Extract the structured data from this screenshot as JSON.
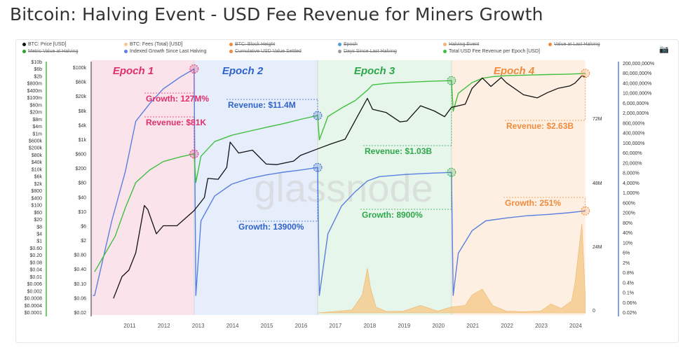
{
  "page": {
    "title": "Bitcoin: Halving Event - USD Fee Revenue for Miners Growth",
    "watermark": "glassnode",
    "camera_icon": "camera-icon"
  },
  "legend": [
    {
      "label": "BTC: Price [USD]",
      "color": "#111111",
      "enabled": true
    },
    {
      "label": "BTC: Fees (Total) [USD]",
      "color": "#f5c98a",
      "enabled": true
    },
    {
      "label": "BTC: Block Height",
      "color": "#f08a3c",
      "enabled": false
    },
    {
      "label": "Epoch",
      "color": "#4a9fd8",
      "enabled": false
    },
    {
      "label": "Halving Event",
      "color": "#f4b27a",
      "enabled": false
    },
    {
      "label": "Value at Last Halving",
      "color": "#f08a3c",
      "enabled": false
    },
    {
      "label": "Metric Value at Halving",
      "color": "#2ca02c",
      "enabled": false
    },
    {
      "label": "Indexed Growth Since Last Halving",
      "color": "#5b7fe0",
      "enabled": true
    },
    {
      "label": "Cumulative USD Value Settled",
      "color": "#f08a3c",
      "enabled": false
    },
    {
      "label": "Days Since Last Halving",
      "color": "#999999",
      "enabled": false
    },
    {
      "label": "Total USD Fee Revenue per Epoch [USD]",
      "color": "#3fbf3f",
      "enabled": true
    }
  ],
  "chart_data": {
    "type": "line",
    "title": "Bitcoin: Halving Event - USD Fee Revenue for Miners Growth",
    "x_ticks": [
      "2011",
      "2012",
      "2013",
      "2014",
      "2015",
      "2016",
      "2017",
      "2018",
      "2019",
      "2020",
      "2021",
      "2022",
      "2023",
      "2024"
    ],
    "axes": {
      "price_left": [
        "$100k",
        "$60k",
        "$20k",
        "$8k",
        "$4k",
        "$1k",
        "$600",
        "$200",
        "$80",
        "$40",
        "$10",
        "$6",
        "$2",
        "$0.80",
        "$0.40",
        "$0.10",
        "$0.06",
        "$0.02"
      ],
      "revenue_left": [
        "$10b",
        "$6b",
        "$2b",
        "$800m",
        "$400m",
        "$100m",
        "$60m",
        "$20m",
        "$8m",
        "$4m",
        "$1m",
        "$600k",
        "$200k",
        "$80k",
        "$40k",
        "$10k",
        "$6k",
        "$2k",
        "$800",
        "$400",
        "$100",
        "$60",
        "$20",
        "$8",
        "$4",
        "$1",
        "$0.60",
        "$0.20",
        "$0.08",
        "$0.04",
        "$0.01",
        "$0.006",
        "$0.002",
        "$0.0008",
        "$0.0004",
        "$0.0001"
      ],
      "fees_right": [
        "72M",
        "48M",
        "24M",
        "0"
      ],
      "growth_right": [
        "200,000,000%",
        "80,000,000%",
        "40,000,000%",
        "10,000,000%",
        "6,000,000%",
        "2,000,000%",
        "800,000%",
        "400,000%",
        "100,000%",
        "60,000%",
        "20,000%",
        "8,000%",
        "4,000%",
        "1,000%",
        "600%",
        "200%",
        "80%",
        "40%",
        "10%",
        "6%",
        "2%",
        "0.8%",
        "0.4%",
        "0.1%",
        "0.06%",
        "0.02%"
      ]
    },
    "epochs": [
      {
        "name": "Epoch 1",
        "start": 2009.0,
        "end": 2012.9,
        "color": "#fbe3ec",
        "label_color": "#e0306c"
      },
      {
        "name": "Epoch 2",
        "start": 2012.9,
        "end": 2016.5,
        "color": "#e6edfb",
        "label_color": "#2f63c9"
      },
      {
        "name": "Epoch 3",
        "start": 2016.5,
        "end": 2020.4,
        "color": "#e6f6ea",
        "label_color": "#2ea74b"
      },
      {
        "name": "Epoch 4",
        "start": 2020.4,
        "end": 2024.3,
        "color": "#fdf0e2",
        "label_color": "#f08a3c"
      }
    ],
    "annotations": [
      {
        "text": "Growth: 127M%",
        "color": "#e0306c",
        "x": 2012.9,
        "axis": "growth",
        "value": 127000000
      },
      {
        "text": "Revenue: $81K",
        "color": "#e0306c",
        "x": 2012.9,
        "axis": "revenue",
        "value": 81000
      },
      {
        "text": "Revenue: $11.4M",
        "color": "#2f63c9",
        "x": 2016.5,
        "axis": "revenue",
        "value": 11400000
      },
      {
        "text": "Growth: 13900%",
        "color": "#2f63c9",
        "x": 2016.5,
        "axis": "growth",
        "value": 13900
      },
      {
        "text": "Revenue: $1.03B",
        "color": "#2ea74b",
        "x": 2020.4,
        "axis": "revenue",
        "value": 1030000000
      },
      {
        "text": "Growth: 8900%",
        "color": "#2ea74b",
        "x": 2020.4,
        "axis": "growth",
        "value": 8900
      },
      {
        "text": "Revenue: $2.63B",
        "color": "#f08a3c",
        "x": 2024.3,
        "axis": "revenue",
        "value": 2630000000
      },
      {
        "text": "Growth: 251%",
        "color": "#f08a3c",
        "x": 2024.3,
        "axis": "growth",
        "value": 251
      }
    ],
    "series": [
      {
        "name": "BTC: Price [USD]",
        "color": "#111111",
        "axis": "price",
        "x": [
          2010.55,
          2010.8,
          2011.0,
          2011.2,
          2011.45,
          2011.55,
          2011.8,
          2012.0,
          2012.4,
          2012.9,
          2013.2,
          2013.3,
          2013.6,
          2013.85,
          2013.95,
          2014.2,
          2014.6,
          2015.0,
          2015.3,
          2015.8,
          2016.0,
          2016.5,
          2016.9,
          2017.3,
          2017.6,
          2017.95,
          2018.1,
          2018.5,
          2018.9,
          2019.1,
          2019.5,
          2019.9,
          2020.2,
          2020.4,
          2020.8,
          2021.0,
          2021.3,
          2021.55,
          2021.85,
          2022.0,
          2022.5,
          2022.9,
          2023.2,
          2023.5,
          2023.85,
          2024.0,
          2024.2,
          2024.3
        ],
        "y": [
          0.05,
          0.2,
          0.3,
          0.9,
          18,
          14,
          3,
          5,
          5,
          13,
          30,
          100,
          95,
          200,
          1000,
          500,
          600,
          250,
          240,
          300,
          430,
          650,
          900,
          1200,
          4000,
          16000,
          8000,
          6500,
          3600,
          3800,
          10000,
          7200,
          5000,
          9000,
          11000,
          30000,
          58000,
          34000,
          60000,
          43000,
          20000,
          16500,
          23000,
          30000,
          35000,
          42000,
          67000,
          62000
        ]
      },
      {
        "name": "Total USD Fee Revenue per Epoch [USD]",
        "color": "#3fbf3f",
        "axis": "revenue",
        "x": [
          2010.0,
          2010.6,
          2010.9,
          2011.2,
          2011.6,
          2012.0,
          2012.5,
          2012.9,
          2012.95,
          2013.1,
          2013.5,
          2014.0,
          2014.5,
          2015.0,
          2015.5,
          2016.0,
          2016.5,
          2016.55,
          2016.8,
          2017.2,
          2017.6,
          2017.95,
          2018.1,
          2018.6,
          2019.2,
          2019.8,
          2020.4,
          2020.45,
          2020.6,
          2021.0,
          2021.3,
          2021.6,
          2022.0,
          2022.6,
          2023.2,
          2023.7,
          2024.0,
          2024.3
        ],
        "y": [
          0.02,
          2,
          80,
          2000,
          10000,
          30000,
          55000,
          81000,
          2000,
          60000,
          400000,
          900000,
          1500000,
          2500000,
          4000000,
          7000000,
          11400000,
          500000,
          10000000,
          30000000,
          80000000,
          300000000,
          600000000,
          750000000,
          850000000,
          950000000,
          1030000000,
          20000000,
          200000000,
          800000000,
          1400000000,
          1700000000,
          1950000000,
          2100000000,
          2250000000,
          2350000000,
          2450000000,
          2630000000
        ]
      },
      {
        "name": "Indexed Growth Since Last Halving",
        "color": "#5b7fe0",
        "axis": "growth",
        "x": [
          2009.95,
          2010.0,
          2010.5,
          2010.9,
          2011.2,
          2011.6,
          2012.0,
          2012.5,
          2012.9,
          2012.95,
          2013.1,
          2013.5,
          2014.0,
          2014.5,
          2015.0,
          2015.5,
          2016.0,
          2016.5,
          2016.55,
          2016.8,
          2017.2,
          2017.6,
          2017.95,
          2018.3,
          2019.0,
          2019.6,
          2020.4,
          2020.45,
          2020.6,
          2021.0,
          2021.4,
          2022.0,
          2022.6,
          2023.2,
          2023.8,
          2024.3
        ],
        "y": [
          0.1,
          0.1,
          100,
          10000,
          1000000,
          5000000,
          20000000,
          60000000,
          127000000,
          0.1,
          100,
          1000,
          3000,
          5000,
          7000,
          9000,
          11000,
          13900,
          0.1,
          30,
          400,
          1500,
          4000,
          6000,
          7200,
          8000,
          8900,
          0.1,
          5,
          40,
          100,
          130,
          160,
          180,
          210,
          251
        ]
      },
      {
        "name": "BTC: Fees (Total) [USD]",
        "color": "#f5c98a",
        "axis": "fees",
        "x": [
          2016.5,
          2017.5,
          2017.8,
          2017.95,
          2018.05,
          2018.2,
          2018.5,
          2019.0,
          2019.5,
          2020.0,
          2020.4,
          2020.8,
          2021.0,
          2021.3,
          2021.6,
          2022.0,
          2022.5,
          2023.0,
          2023.3,
          2023.6,
          2023.9,
          2024.0,
          2024.2,
          2024.3
        ],
        "y": [
          0,
          1000000,
          6000000,
          15000000,
          8000000,
          2000000,
          500000,
          600000,
          2500000,
          600000,
          2000000,
          2500000,
          6000000,
          8000000,
          2500000,
          600000,
          400000,
          600000,
          3000000,
          1500000,
          4000000,
          10000000,
          30000000,
          6000000
        ]
      }
    ]
  }
}
